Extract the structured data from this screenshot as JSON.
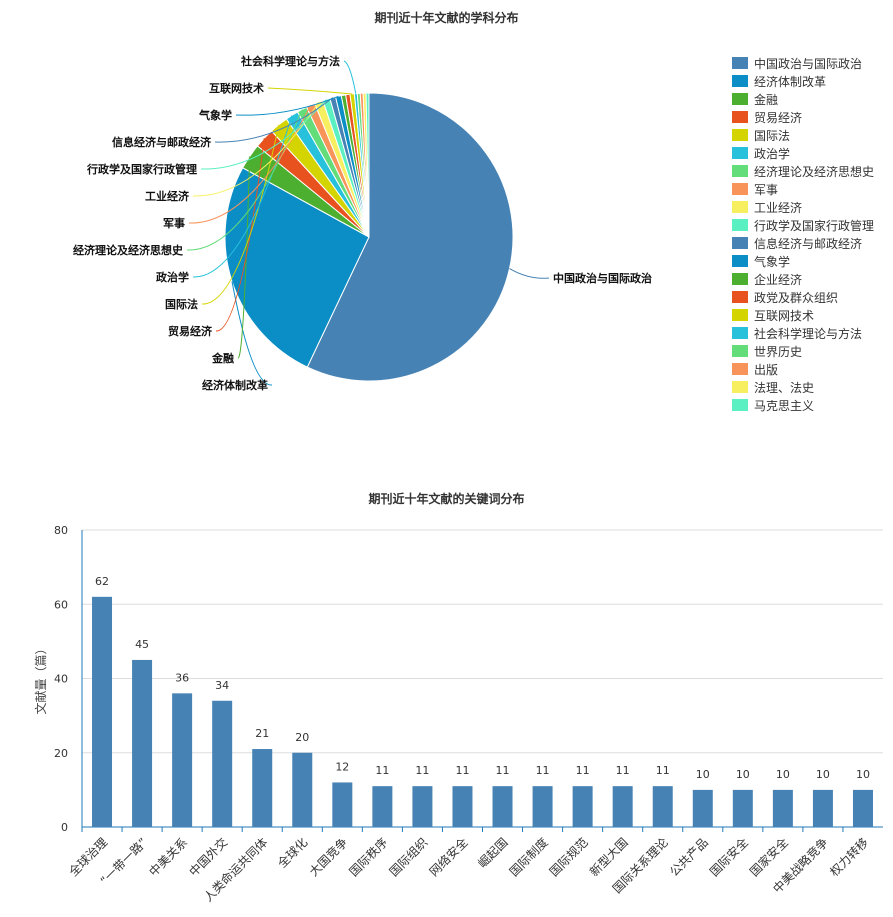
{
  "chart_data": [
    {
      "type": "pie",
      "title": "期刊近十年文献的学科分布",
      "categories": [
        "中国政治与国际政治",
        "经济体制改革",
        "金融",
        "贸易经济",
        "国际法",
        "政治学",
        "经济理论及经济思想史",
        "军事",
        "工业经济",
        "行政学及国家行政管理",
        "信息经济与邮政经济",
        "气象学",
        "企业经济",
        "政党及群众组织",
        "互联网技术",
        "社会科学理论与方法",
        "世界历史",
        "出版",
        "法理、法史",
        "马克思主义"
      ],
      "values": [
        352,
        160,
        18,
        14,
        13,
        9,
        7,
        6,
        6,
        5,
        4,
        4,
        3,
        3,
        3,
        2,
        2,
        2,
        2,
        2
      ],
      "colors": [
        "#4682b4",
        "#0b8ec6",
        "#4caf30",
        "#e8521f",
        "#d4d400",
        "#27c1dc",
        "#63dc7a",
        "#f8935a",
        "#f8ef60",
        "#5bf0c2",
        "#4682b4",
        "#0b8ec6",
        "#4caf30",
        "#e8521f",
        "#d4d400",
        "#27c1dc",
        "#63dc7a",
        "#f8935a",
        "#f8ef60",
        "#5bf0c2"
      ],
      "shown_labels": [
        "中国政治与国际政治",
        "经济体制改革",
        "金融",
        "贸易经济",
        "国际法",
        "政治学",
        "经济理论及经济思想史",
        "军事",
        "工业经济",
        "行政学及国家行政管理",
        "信息经济与邮政经济",
        "气象学",
        "互联网技术",
        "社会科学理论与方法"
      ],
      "legend": "right"
    },
    {
      "type": "bar",
      "title": "期刊近十年文献的关键词分布",
      "ylabel": "文献量（篇）",
      "xlabel": "",
      "categories": [
        "全球治理",
        "“一带一路”",
        "中美关系",
        "中国外交",
        "人类命运共同体",
        "全球化",
        "大国竞争",
        "国际秩序",
        "国际组织",
        "网络安全",
        "崛起国",
        "国际制度",
        "国际规范",
        "新型大国",
        "国际关系理论",
        "公共产品",
        "国际安全",
        "国家安全",
        "中美战略竞争",
        "权力转移"
      ],
      "values": [
        62,
        45,
        36,
        34,
        21,
        20,
        12,
        11,
        11,
        11,
        11,
        11,
        11,
        11,
        11,
        10,
        10,
        10,
        10,
        10
      ],
      "ylim": [
        0,
        80
      ],
      "yticks": [
        0,
        20,
        40,
        60,
        80
      ],
      "bar_color": "#4682b4",
      "grid": true
    }
  ]
}
